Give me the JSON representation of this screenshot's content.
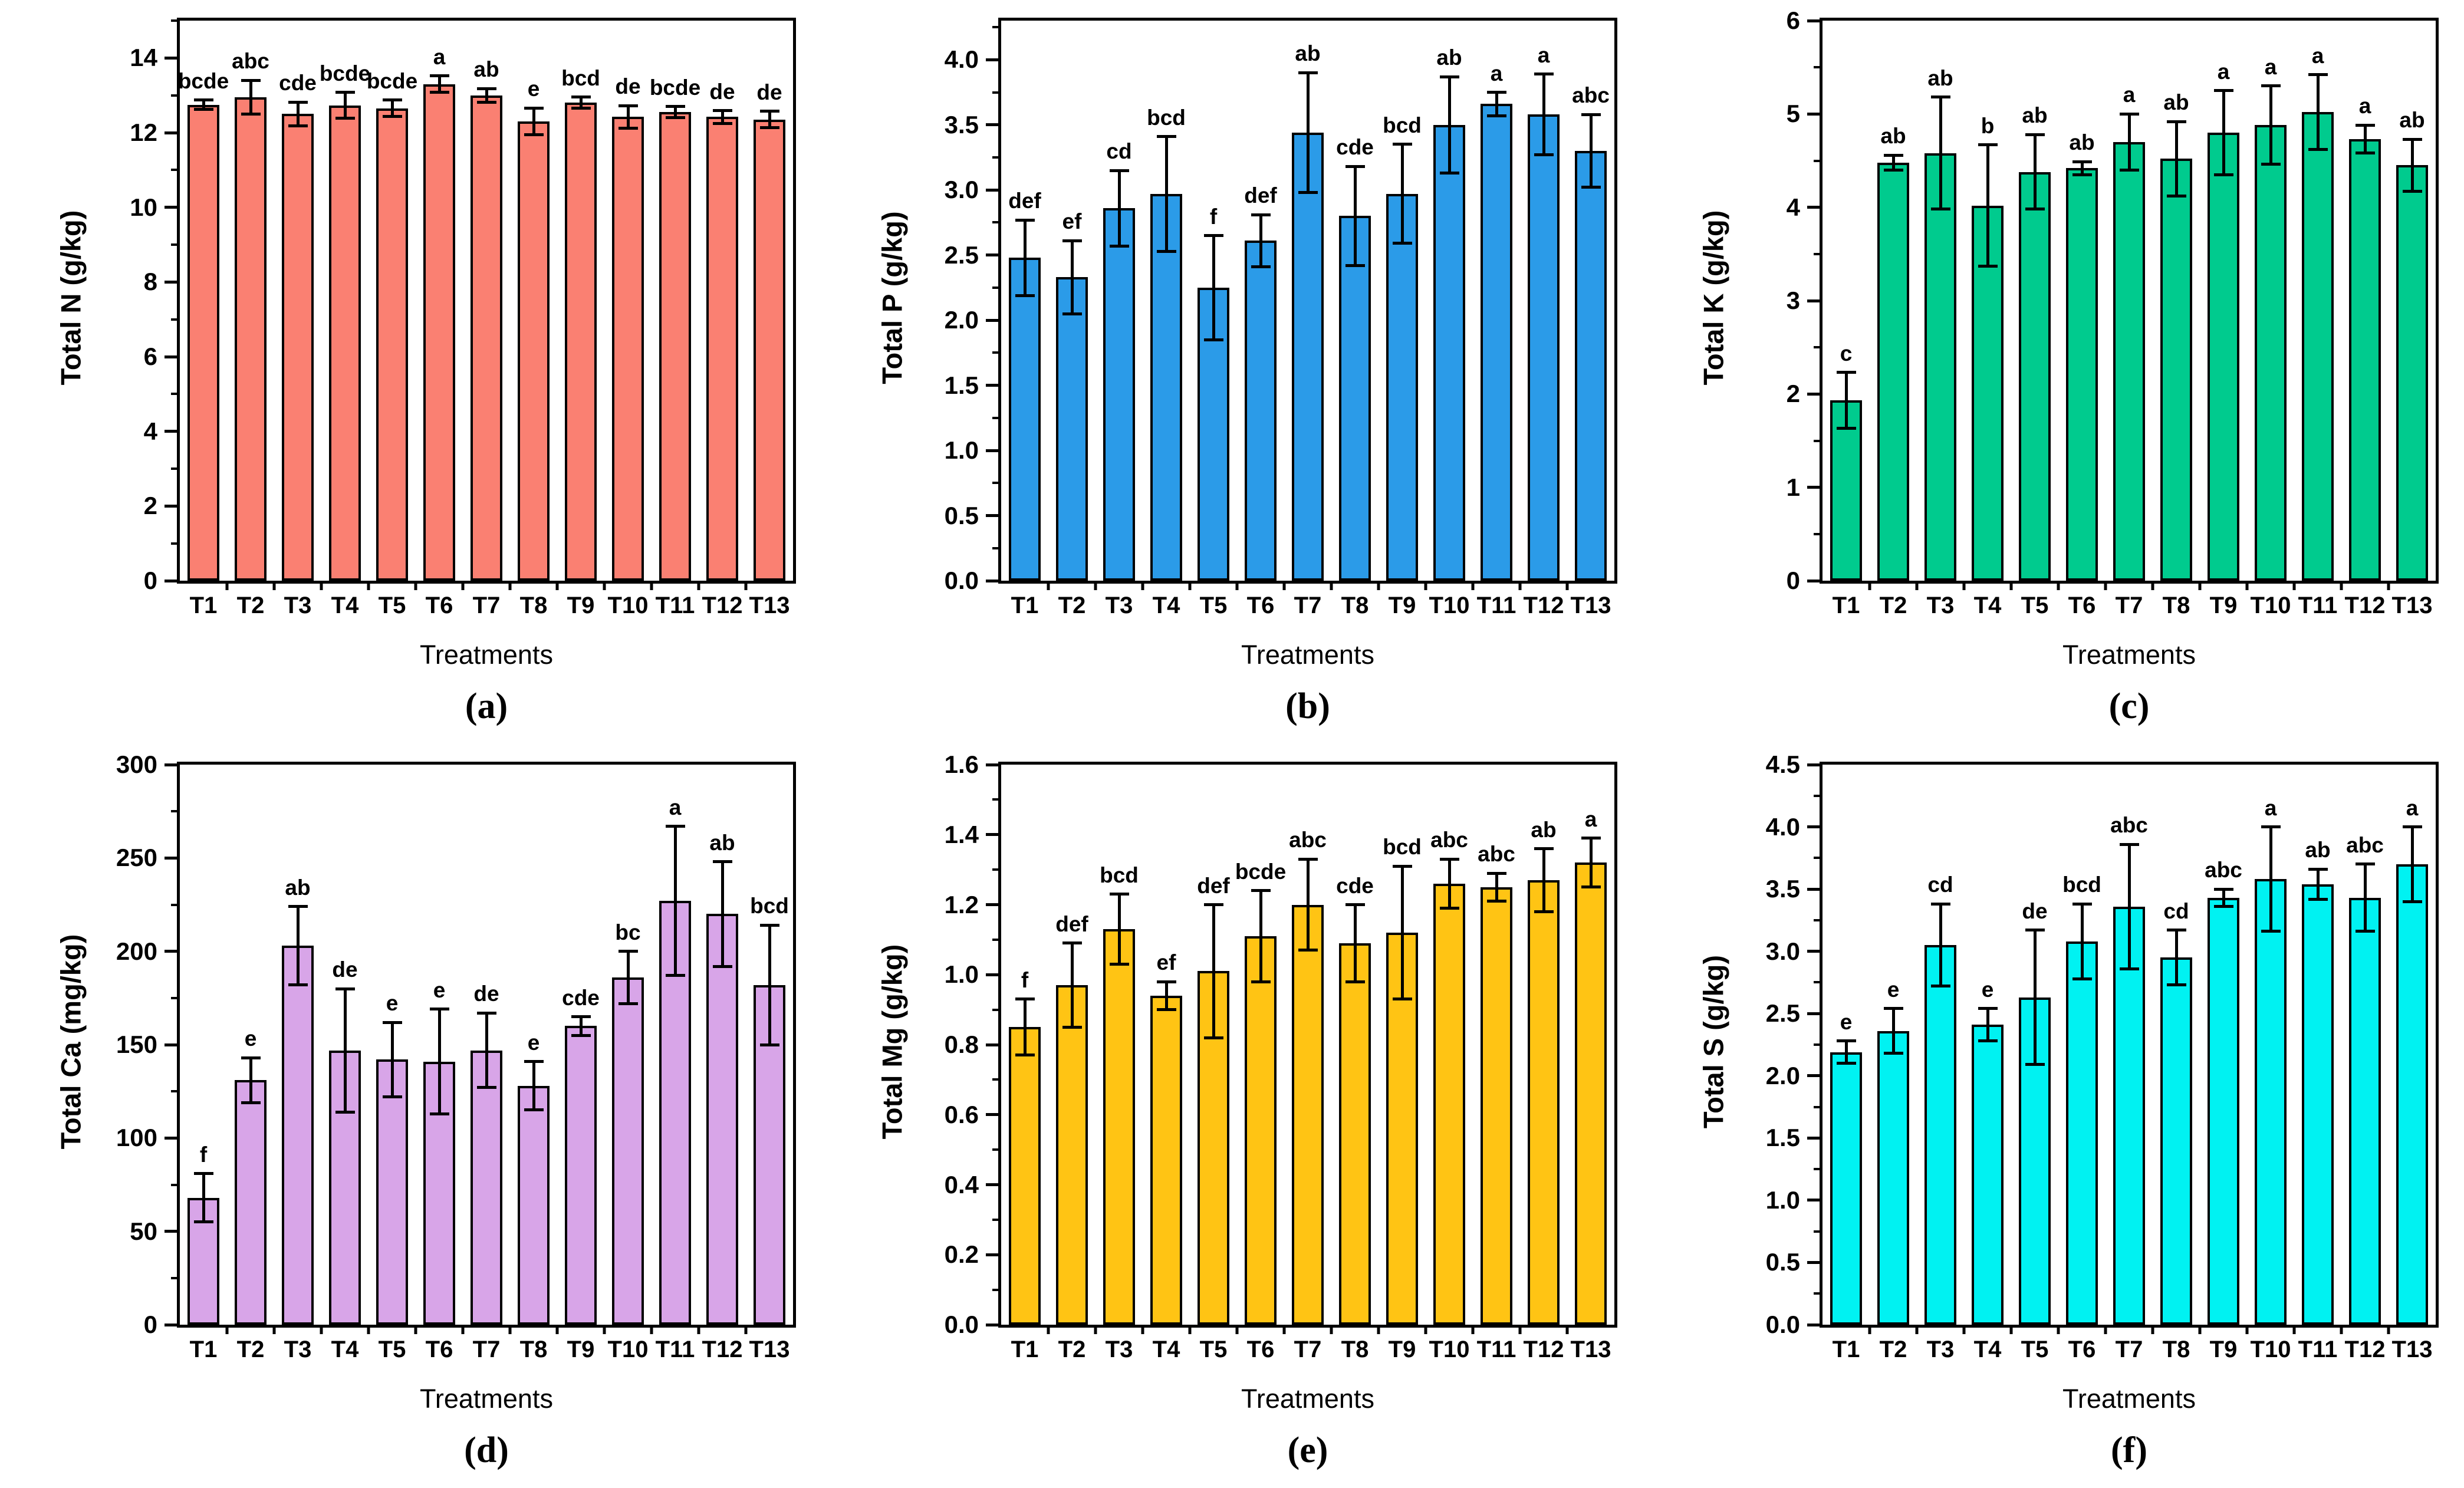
{
  "figure": {
    "background": "#FFFFFF",
    "axis_color": "#000000",
    "x_axis_label": "Treatments",
    "treatments": [
      "T1",
      "T2",
      "T3",
      "T4",
      "T5",
      "T6",
      "T7",
      "T8",
      "T9",
      "T10",
      "T11",
      "T12",
      "T13"
    ]
  },
  "chart_data": [
    {
      "panel": "a",
      "caption": "(a)",
      "type": "bar",
      "ylabel": "Total N (g/kg)",
      "xlabel": "Treatments",
      "bar_color": "#FA8072",
      "ylim": [
        0,
        15
      ],
      "ytick_values": [
        0,
        2,
        4,
        6,
        8,
        10,
        12,
        14
      ],
      "ytick_labels": [
        "0",
        "2",
        "4",
        "6",
        "8",
        "10",
        "12",
        "14"
      ],
      "minor_step": 1,
      "grid": false,
      "categories": [
        "T1",
        "T2",
        "T3",
        "T4",
        "T5",
        "T6",
        "T7",
        "T8",
        "T9",
        "T10",
        "T11",
        "T12",
        "T13"
      ],
      "values": [
        12.75,
        12.95,
        12.5,
        12.73,
        12.65,
        13.3,
        13.0,
        12.3,
        12.8,
        12.42,
        12.55,
        12.42,
        12.35
      ],
      "errors": [
        0.12,
        0.45,
        0.32,
        0.35,
        0.22,
        0.22,
        0.18,
        0.36,
        0.15,
        0.3,
        0.15,
        0.17,
        0.22
      ],
      "sig_letters": [
        "bcde",
        "abc",
        "cde",
        "bcde",
        "bcde",
        "a",
        "ab",
        "e",
        "bcd",
        "de",
        "bcde",
        "de",
        "de"
      ]
    },
    {
      "panel": "b",
      "caption": "(b)",
      "type": "bar",
      "ylabel": "Total P (g/kg)",
      "xlabel": "Treatments",
      "bar_color": "#2B9BE8",
      "ylim": [
        0,
        4.3
      ],
      "ytick_values": [
        0,
        0.5,
        1.0,
        1.5,
        2.0,
        2.5,
        3.0,
        3.5,
        4.0
      ],
      "ytick_labels": [
        "0.0",
        "0.5",
        "1.0",
        "1.5",
        "2.0",
        "2.5",
        "3.0",
        "3.5",
        "4.0"
      ],
      "minor_step": 0.25,
      "grid": false,
      "categories": [
        "T1",
        "T2",
        "T3",
        "T4",
        "T5",
        "T6",
        "T7",
        "T8",
        "T9",
        "T10",
        "T11",
        "T12",
        "T13"
      ],
      "values": [
        2.48,
        2.33,
        2.86,
        2.97,
        2.25,
        2.61,
        3.44,
        2.8,
        2.97,
        3.5,
        3.66,
        3.58,
        3.3
      ],
      "errors": [
        0.29,
        0.28,
        0.29,
        0.44,
        0.4,
        0.2,
        0.46,
        0.38,
        0.38,
        0.37,
        0.09,
        0.31,
        0.28
      ],
      "sig_letters": [
        "def",
        "ef",
        "cd",
        "bcd",
        "f",
        "def",
        "ab",
        "cde",
        "bcd",
        "ab",
        "a",
        "a",
        "abc"
      ]
    },
    {
      "panel": "c",
      "caption": "(c)",
      "type": "bar",
      "ylabel": "Total K (g/kg)",
      "xlabel": "Treatments",
      "bar_color": "#00CB8E",
      "ylim": [
        0,
        6
      ],
      "ytick_values": [
        0,
        1,
        2,
        3,
        4,
        5,
        6
      ],
      "ytick_labels": [
        "0",
        "1",
        "2",
        "3",
        "4",
        "5",
        "6"
      ],
      "minor_step": 0.5,
      "grid": false,
      "categories": [
        "T1",
        "T2",
        "T3",
        "T4",
        "T5",
        "T6",
        "T7",
        "T8",
        "T9",
        "T10",
        "T11",
        "T12",
        "T13"
      ],
      "values": [
        1.93,
        4.48,
        4.58,
        4.02,
        4.38,
        4.42,
        4.7,
        4.52,
        4.8,
        4.88,
        5.02,
        4.73,
        4.45
      ],
      "errors": [
        0.3,
        0.08,
        0.6,
        0.65,
        0.4,
        0.07,
        0.3,
        0.4,
        0.45,
        0.42,
        0.4,
        0.15,
        0.28
      ],
      "sig_letters": [
        "c",
        "ab",
        "ab",
        "b",
        "ab",
        "ab",
        "a",
        "ab",
        "a",
        "a",
        "a",
        "a",
        "ab"
      ]
    },
    {
      "panel": "d",
      "caption": "(d)",
      "type": "bar",
      "ylabel": "Total Ca (mg/kg)",
      "xlabel": "Treatments",
      "bar_color": "#D8A5E8",
      "ylim": [
        0,
        300
      ],
      "ytick_values": [
        0,
        50,
        100,
        150,
        200,
        250,
        300
      ],
      "ytick_labels": [
        "0",
        "50",
        "100",
        "150",
        "200",
        "250",
        "300"
      ],
      "minor_step": 25,
      "grid": false,
      "categories": [
        "T1",
        "T2",
        "T3",
        "T4",
        "T5",
        "T6",
        "T7",
        "T8",
        "T9",
        "T10",
        "T11",
        "T12",
        "T13"
      ],
      "values": [
        68,
        131,
        203,
        147,
        142,
        141,
        147,
        128,
        160,
        186,
        227,
        220,
        182
      ],
      "errors": [
        13,
        12,
        21,
        33,
        20,
        28,
        20,
        13,
        5,
        14,
        40,
        28,
        32
      ],
      "sig_letters": [
        "f",
        "e",
        "ab",
        "de",
        "e",
        "e",
        "de",
        "e",
        "cde",
        "bc",
        "a",
        "ab",
        "bcd"
      ]
    },
    {
      "panel": "e",
      "caption": "(e)",
      "type": "bar",
      "ylabel": "Total Mg (g/kg)",
      "xlabel": "Treatments",
      "bar_color": "#FFC414",
      "ylim": [
        0,
        1.6
      ],
      "ytick_values": [
        0,
        0.2,
        0.4,
        0.6,
        0.8,
        1.0,
        1.2,
        1.4,
        1.6
      ],
      "ytick_labels": [
        "0.0",
        "0.2",
        "0.4",
        "0.6",
        "0.8",
        "1.0",
        "1.2",
        "1.4",
        "1.6"
      ],
      "minor_step": 0.1,
      "grid": false,
      "categories": [
        "T1",
        "T2",
        "T3",
        "T4",
        "T5",
        "T6",
        "T7",
        "T8",
        "T9",
        "T10",
        "T11",
        "T12",
        "T13"
      ],
      "values": [
        0.85,
        0.97,
        1.13,
        0.94,
        1.01,
        1.11,
        1.2,
        1.09,
        1.12,
        1.26,
        1.25,
        1.27,
        1.32
      ],
      "errors": [
        0.08,
        0.12,
        0.1,
        0.04,
        0.19,
        0.13,
        0.13,
        0.11,
        0.19,
        0.07,
        0.04,
        0.09,
        0.07
      ],
      "sig_letters": [
        "f",
        "def",
        "bcd",
        "ef",
        "def",
        "bcde",
        "abc",
        "cde",
        "bcd",
        "abc",
        "abc",
        "ab",
        "a"
      ]
    },
    {
      "panel": "f",
      "caption": "(f)",
      "type": "bar",
      "ylabel": "Total S (g/kg)",
      "xlabel": "Treatments",
      "bar_color": "#00F2F2",
      "ylim": [
        0,
        4.5
      ],
      "ytick_values": [
        0,
        0.5,
        1.0,
        1.5,
        2.0,
        2.5,
        3.0,
        3.5,
        4.0,
        4.5
      ],
      "ytick_labels": [
        "0.0",
        "0.5",
        "1.0",
        "1.5",
        "2.0",
        "2.5",
        "3.0",
        "3.5",
        "4.0",
        "4.5"
      ],
      "minor_step": 0.25,
      "grid": false,
      "categories": [
        "T1",
        "T2",
        "T3",
        "T4",
        "T5",
        "T6",
        "T7",
        "T8",
        "T9",
        "T10",
        "T11",
        "T12",
        "T13"
      ],
      "values": [
        2.19,
        2.36,
        3.05,
        2.41,
        2.63,
        3.08,
        3.36,
        2.95,
        3.43,
        3.58,
        3.54,
        3.43,
        3.7
      ],
      "errors": [
        0.09,
        0.18,
        0.33,
        0.13,
        0.54,
        0.3,
        0.5,
        0.22,
        0.07,
        0.42,
        0.12,
        0.27,
        0.3
      ],
      "sig_letters": [
        "e",
        "e",
        "cd",
        "e",
        "de",
        "bcd",
        "abc",
        "cd",
        "abc",
        "a",
        "ab",
        "abc",
        "a"
      ]
    }
  ]
}
